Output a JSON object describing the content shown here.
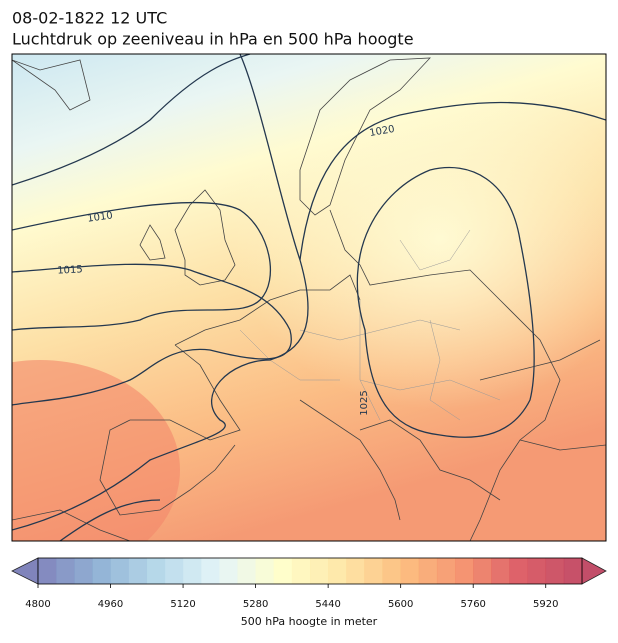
{
  "header": {
    "title_line1": "08-02-1822 12 UTC",
    "title_line2": "Luchtdruk op zeeniveau in hPa en 500 hPa hoogte"
  },
  "contours": [
    {
      "label": "1010"
    },
    {
      "label": "1015"
    },
    {
      "label": "1020"
    },
    {
      "label": "1025"
    }
  ],
  "colorbar": {
    "label": "500 hPa hoogte in meter",
    "lim": [
      4800,
      6000
    ],
    "step": 40,
    "ticks": [
      4800,
      4960,
      5120,
      5280,
      5440,
      5600,
      5760,
      5920
    ],
    "colors": [
      "#6b6fb0",
      "#7fa6cf",
      "#abd3e6",
      "#e0f3f8",
      "#ffffc4",
      "#fee49a",
      "#fcb56c",
      "#f4845a",
      "#d7444f",
      "#b8304f"
    ]
  }
}
